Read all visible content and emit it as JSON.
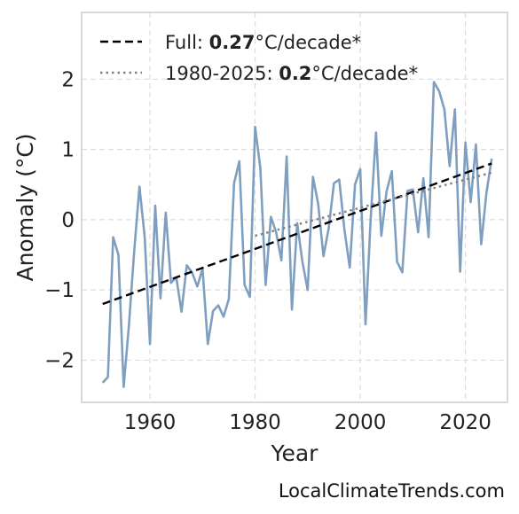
{
  "chart_data": {
    "type": "line",
    "xlabel": "Year",
    "ylabel": "Anomaly (°C)",
    "xlim": [
      1947,
      2028
    ],
    "ylim": [
      -2.6,
      2.95
    ],
    "xticks": [
      1960,
      1980,
      2000,
      2020
    ],
    "yticks": [
      -2,
      -1,
      0,
      1,
      2
    ],
    "ytick_labels": [
      "−2",
      "−1",
      "0",
      "1",
      "2"
    ],
    "grid": true,
    "legend_position": "top-left",
    "series": [
      {
        "kind": "anomaly",
        "color": "#7f9fc0",
        "x": [
          1951,
          1952,
          1953,
          1954,
          1955,
          1956,
          1957,
          1958,
          1959,
          1960,
          1961,
          1962,
          1963,
          1964,
          1965,
          1966,
          1967,
          1968,
          1969,
          1970,
          1971,
          1972,
          1973,
          1974,
          1975,
          1976,
          1977,
          1978,
          1979,
          1980,
          1981,
          1982,
          1983,
          1984,
          1985,
          1986,
          1987,
          1988,
          1989,
          1990,
          1991,
          1992,
          1993,
          1994,
          1995,
          1996,
          1997,
          1998,
          1999,
          2000,
          2001,
          2002,
          2003,
          2004,
          2005,
          2006,
          2007,
          2008,
          2009,
          2010,
          2011,
          2012,
          2013,
          2014,
          2015,
          2016,
          2017,
          2018,
          2019,
          2020,
          2021,
          2022,
          2023,
          2024,
          2025
        ],
        "y": [
          -2.32,
          -2.24,
          -0.25,
          -0.5,
          -2.38,
          -1.5,
          -0.45,
          0.47,
          -0.25,
          -1.77,
          0.2,
          -1.12,
          0.1,
          -0.9,
          -0.82,
          -1.31,
          -0.65,
          -0.75,
          -0.95,
          -0.7,
          -1.77,
          -1.3,
          -1.22,
          -1.38,
          -1.13,
          0.52,
          0.83,
          -0.93,
          -1.1,
          1.32,
          0.73,
          -0.93,
          0.04,
          -0.18,
          -0.58,
          0.9,
          -1.28,
          -0.05,
          -0.6,
          -1.0,
          0.61,
          0.22,
          -0.52,
          -0.12,
          0.52,
          0.57,
          -0.15,
          -0.68,
          0.5,
          0.72,
          -1.49,
          0.04,
          1.24,
          -0.23,
          0.4,
          0.69,
          -0.6,
          -0.75,
          0.41,
          0.43,
          -0.18,
          0.59,
          -0.25,
          1.96,
          1.83,
          1.57,
          0.76,
          1.57,
          -0.74,
          1.1,
          0.25,
          1.07,
          -0.35,
          0.38,
          0.87
        ]
      },
      {
        "kind": "trend-full",
        "color": "#000000",
        "x": [
          1951,
          2025
        ],
        "y": [
          -1.2,
          0.8
        ]
      },
      {
        "kind": "trend-1980",
        "color": "#808080",
        "x": [
          1980,
          2025
        ],
        "y": [
          -0.23,
          0.67
        ]
      }
    ],
    "legend": [
      {
        "prefix": "Full: ",
        "value": "0.27",
        "suffix": "°C/decade*"
      },
      {
        "prefix": "1980-2025: ",
        "value": "0.2",
        "suffix": "°C/decade*"
      }
    ]
  },
  "watermark": "LocalClimateTrends.com"
}
